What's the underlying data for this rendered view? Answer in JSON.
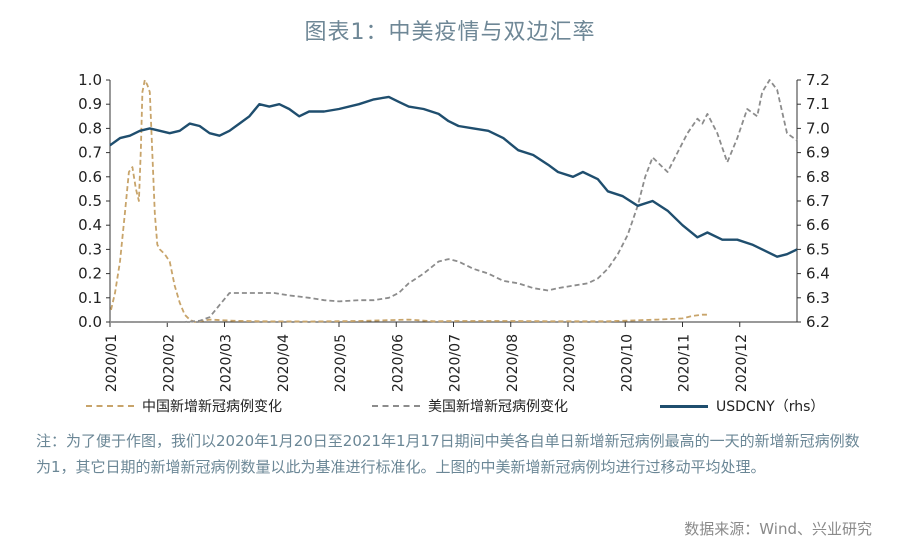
{
  "title": "图表1：中美疫情与双边汇率",
  "note": "注：为了便于作图，我们以2020年1月20日至2021年1月17日期间中美各自单日新增新冠病例最高的一天的新增新冠病例数为1，其它日期的新增新冠病例数量以此为基准进行标准化。上图的中美新增新冠病例均进行过移动平均处理。",
  "source": "数据来源：Wind、兴业研究",
  "colors": {
    "china": "#c8a46a",
    "us": "#8c8c8c",
    "usdcny": "#1f4e6e",
    "axis": "#333333"
  },
  "chart_data": {
    "type": "line",
    "title": "图表1：中美疫情与双边汇率",
    "x_ticks": [
      "2020/01",
      "2020/02",
      "2020/03",
      "2020/04",
      "2020/05",
      "2020/06",
      "2020/07",
      "2020/08",
      "2020/09",
      "2020/10",
      "2020/11",
      "2020/12"
    ],
    "y_left": {
      "min": 0,
      "max": 1,
      "ticks": [
        "0.0",
        "0.1",
        "0.2",
        "0.3",
        "0.4",
        "0.5",
        "0.6",
        "0.7",
        "0.8",
        "0.9",
        "1.0"
      ]
    },
    "y_right": {
      "min": 6.2,
      "max": 7.2,
      "label": "rhs",
      "ticks": [
        "6.2",
        "6.3",
        "6.4",
        "6.5",
        "6.6",
        "6.7",
        "6.8",
        "6.9",
        "7.0",
        "7.1",
        "7.2"
      ]
    },
    "series": [
      {
        "name": "中国新增新冠病例变化",
        "axis": "left",
        "style": "dashed",
        "color": "#c8a46a",
        "points": [
          [
            0.02,
            0.05
          ],
          [
            0.1,
            0.12
          ],
          [
            0.2,
            0.25
          ],
          [
            0.3,
            0.45
          ],
          [
            0.38,
            0.62
          ],
          [
            0.45,
            0.64
          ],
          [
            0.52,
            0.55
          ],
          [
            0.58,
            0.5
          ],
          [
            0.62,
            0.72
          ],
          [
            0.65,
            0.95
          ],
          [
            0.7,
            1.0
          ],
          [
            0.75,
            0.98
          ],
          [
            0.8,
            0.95
          ],
          [
            0.85,
            0.7
          ],
          [
            0.9,
            0.45
          ],
          [
            0.95,
            0.32
          ],
          [
            1.0,
            0.3
          ],
          [
            1.1,
            0.28
          ],
          [
            1.2,
            0.25
          ],
          [
            1.3,
            0.15
          ],
          [
            1.4,
            0.08
          ],
          [
            1.5,
            0.03
          ],
          [
            1.6,
            0.01
          ],
          [
            1.7,
            0.0
          ],
          [
            2.0,
            0.01
          ],
          [
            2.5,
            0.005
          ],
          [
            3.0,
            0.003
          ],
          [
            4.0,
            0.002
          ],
          [
            5.0,
            0.004
          ],
          [
            6.0,
            0.01
          ],
          [
            6.5,
            0.003
          ],
          [
            7.0,
            0.004
          ],
          [
            8.0,
            0.004
          ],
          [
            9.0,
            0.003
          ],
          [
            10.0,
            0.003
          ],
          [
            11.0,
            0.01
          ],
          [
            11.5,
            0.015
          ],
          [
            11.7,
            0.025
          ],
          [
            11.9,
            0.03
          ],
          [
            12.0,
            0.03
          ]
        ]
      },
      {
        "name": "美国新增新冠病例变化",
        "axis": "left",
        "style": "dashed",
        "color": "#8c8c8c",
        "points": [
          [
            0.0,
            0.0
          ],
          [
            1.0,
            0.0
          ],
          [
            1.5,
            0.0
          ],
          [
            1.8,
            0.005
          ],
          [
            2.0,
            0.02
          ],
          [
            2.2,
            0.07
          ],
          [
            2.4,
            0.12
          ],
          [
            2.6,
            0.12
          ],
          [
            2.8,
            0.12
          ],
          [
            3.0,
            0.12
          ],
          [
            3.3,
            0.12
          ],
          [
            3.6,
            0.11
          ],
          [
            4.0,
            0.1
          ],
          [
            4.3,
            0.09
          ],
          [
            4.6,
            0.085
          ],
          [
            5.0,
            0.09
          ],
          [
            5.3,
            0.09
          ],
          [
            5.6,
            0.1
          ],
          [
            5.8,
            0.12
          ],
          [
            6.0,
            0.16
          ],
          [
            6.3,
            0.2
          ],
          [
            6.6,
            0.25
          ],
          [
            6.8,
            0.26
          ],
          [
            7.0,
            0.25
          ],
          [
            7.3,
            0.22
          ],
          [
            7.6,
            0.2
          ],
          [
            7.9,
            0.17
          ],
          [
            8.2,
            0.16
          ],
          [
            8.5,
            0.14
          ],
          [
            8.8,
            0.13
          ],
          [
            9.0,
            0.14
          ],
          [
            9.3,
            0.15
          ],
          [
            9.6,
            0.16
          ],
          [
            9.8,
            0.18
          ],
          [
            10.0,
            0.22
          ],
          [
            10.2,
            0.28
          ],
          [
            10.4,
            0.36
          ],
          [
            10.6,
            0.48
          ],
          [
            10.75,
            0.6
          ],
          [
            10.9,
            0.68
          ],
          [
            11.0,
            0.66
          ],
          [
            11.2,
            0.62
          ],
          [
            11.4,
            0.7
          ],
          [
            11.6,
            0.78
          ],
          [
            11.8,
            0.84
          ],
          [
            11.9,
            0.82
          ],
          [
            12.0,
            0.86
          ],
          [
            12.2,
            0.78
          ],
          [
            12.4,
            0.66
          ],
          [
            12.6,
            0.76
          ],
          [
            12.8,
            0.88
          ],
          [
            13.0,
            0.85
          ],
          [
            13.1,
            0.95
          ],
          [
            13.25,
            1.0
          ],
          [
            13.4,
            0.96
          ],
          [
            13.6,
            0.78
          ],
          [
            13.8,
            0.75
          ]
        ]
      },
      {
        "name": "USDCNY（rhs）",
        "axis": "right",
        "style": "solid",
        "color": "#1f4e6e",
        "points": [
          [
            0.0,
            6.93
          ],
          [
            0.2,
            6.96
          ],
          [
            0.4,
            6.97
          ],
          [
            0.6,
            6.99
          ],
          [
            0.8,
            7.0
          ],
          [
            1.0,
            6.99
          ],
          [
            1.2,
            6.98
          ],
          [
            1.4,
            6.99
          ],
          [
            1.6,
            7.02
          ],
          [
            1.8,
            7.01
          ],
          [
            2.0,
            6.98
          ],
          [
            2.2,
            6.97
          ],
          [
            2.4,
            6.99
          ],
          [
            2.6,
            7.02
          ],
          [
            2.8,
            7.05
          ],
          [
            3.0,
            7.1
          ],
          [
            3.2,
            7.09
          ],
          [
            3.4,
            7.1
          ],
          [
            3.6,
            7.08
          ],
          [
            3.8,
            7.05
          ],
          [
            4.0,
            7.07
          ],
          [
            4.3,
            7.07
          ],
          [
            4.6,
            7.08
          ],
          [
            5.0,
            7.1
          ],
          [
            5.3,
            7.12
          ],
          [
            5.6,
            7.13
          ],
          [
            5.8,
            7.11
          ],
          [
            6.0,
            7.09
          ],
          [
            6.3,
            7.08
          ],
          [
            6.6,
            7.06
          ],
          [
            6.8,
            7.03
          ],
          [
            7.0,
            7.01
          ],
          [
            7.3,
            7.0
          ],
          [
            7.6,
            6.99
          ],
          [
            7.9,
            6.96
          ],
          [
            8.2,
            6.91
          ],
          [
            8.5,
            6.89
          ],
          [
            8.8,
            6.85
          ],
          [
            9.0,
            6.82
          ],
          [
            9.3,
            6.8
          ],
          [
            9.5,
            6.82
          ],
          [
            9.8,
            6.79
          ],
          [
            10.0,
            6.74
          ],
          [
            10.3,
            6.72
          ],
          [
            10.6,
            6.68
          ],
          [
            10.9,
            6.7
          ],
          [
            11.2,
            6.66
          ],
          [
            11.5,
            6.6
          ],
          [
            11.8,
            6.55
          ],
          [
            12.0,
            6.57
          ],
          [
            12.3,
            6.54
          ],
          [
            12.6,
            6.54
          ],
          [
            12.9,
            6.52
          ],
          [
            13.2,
            6.49
          ],
          [
            13.4,
            6.47
          ],
          [
            13.6,
            6.48
          ],
          [
            13.8,
            6.5
          ]
        ]
      }
    ]
  }
}
